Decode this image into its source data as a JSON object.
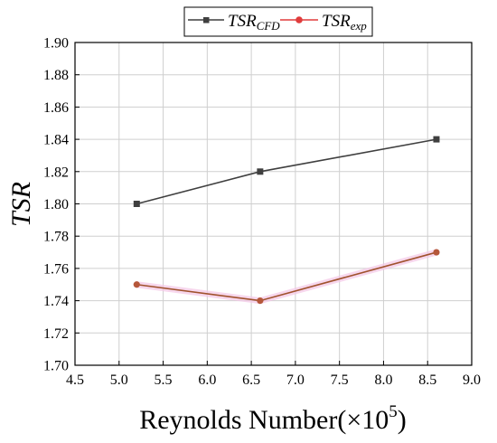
{
  "chart_data": {
    "type": "line",
    "title": "",
    "xlabel": "Reynolds Number(×10",
    "xlabel_sup": "5",
    "xlabel_close": ")",
    "ylabel": "TSR",
    "xlim": [
      4.5,
      9.0
    ],
    "ylim": [
      1.7,
      1.9
    ],
    "x_ticks": [
      "4.5",
      "5.0",
      "5.5",
      "6.0",
      "6.5",
      "7.0",
      "7.5",
      "8.0",
      "8.5",
      "9.0"
    ],
    "y_ticks": [
      "1.70",
      "1.72",
      "1.74",
      "1.76",
      "1.78",
      "1.80",
      "1.82",
      "1.84",
      "1.86",
      "1.88",
      "1.90"
    ],
    "grid": true,
    "legend_position": "top",
    "series": [
      {
        "name_base": "TSR",
        "name_sub": "CFD",
        "color": "#3f3f3f",
        "marker": "square",
        "x": [
          5.2,
          6.6,
          8.6
        ],
        "y": [
          1.8,
          1.82,
          1.84
        ]
      },
      {
        "name_base": "TSR",
        "name_sub": "exp",
        "color": "#e03c3c",
        "line_color": "#a0522d",
        "marker": "circle",
        "x": [
          5.2,
          6.6,
          8.6
        ],
        "y": [
          1.75,
          1.74,
          1.77
        ]
      }
    ]
  }
}
